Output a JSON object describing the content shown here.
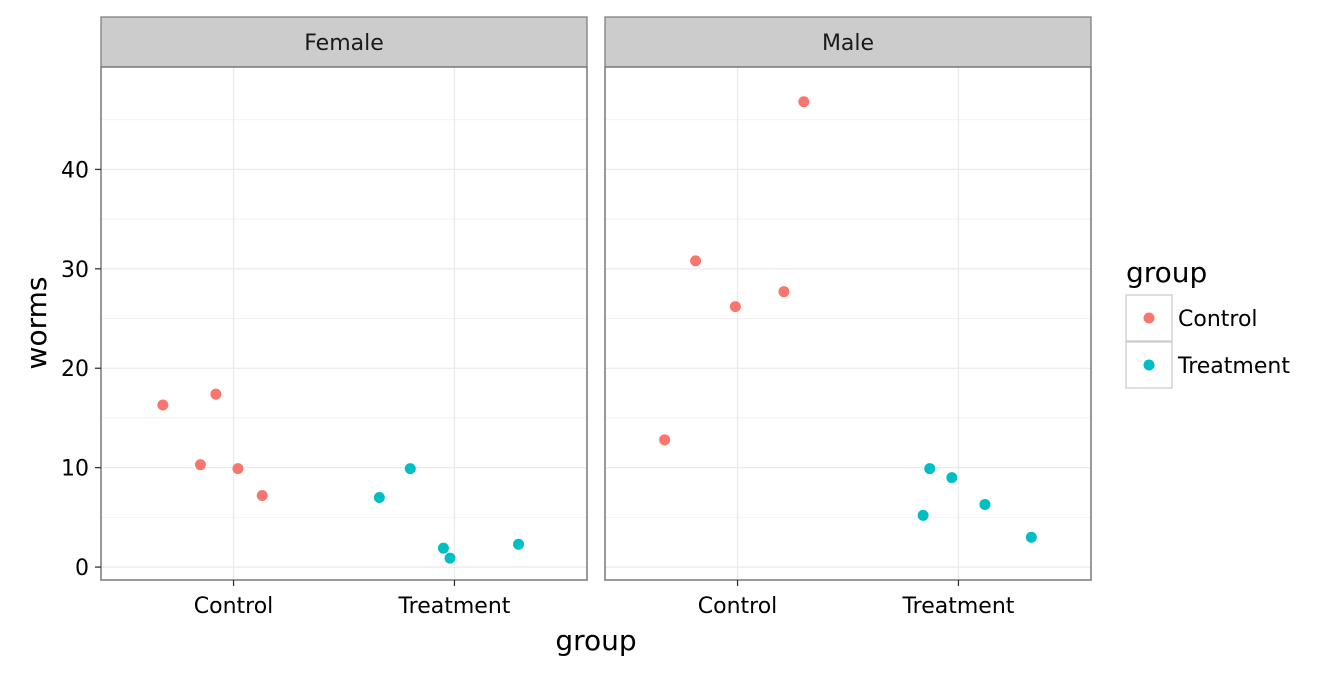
{
  "chart_data": {
    "type": "scatter",
    "facet_labels": [
      "Female",
      "Male"
    ],
    "xlabel": "group",
    "ylabel": "worms",
    "categories": [
      "Control",
      "Treatment"
    ],
    "ylim": [
      -1.3,
      50.3
    ],
    "yticks": [
      0,
      10,
      20,
      30,
      40
    ],
    "grid": true,
    "legend": {
      "title": "group",
      "position": "right",
      "entries": [
        {
          "label": "Control",
          "color": "#F8766D"
        },
        {
          "label": "Treatment",
          "color": "#00BFC4"
        }
      ]
    },
    "panels": [
      {
        "facet": "Female",
        "points": [
          {
            "group": "Control",
            "jitter": -0.32,
            "y": 16.3
          },
          {
            "group": "Control",
            "jitter": -0.08,
            "y": 17.4
          },
          {
            "group": "Control",
            "jitter": -0.15,
            "y": 10.3
          },
          {
            "group": "Control",
            "jitter": 0.02,
            "y": 9.9
          },
          {
            "group": "Control",
            "jitter": 0.13,
            "y": 7.2
          },
          {
            "group": "Treatment",
            "jitter": -0.34,
            "y": 7.0
          },
          {
            "group": "Treatment",
            "jitter": -0.2,
            "y": 9.9
          },
          {
            "group": "Treatment",
            "jitter": -0.05,
            "y": 1.9
          },
          {
            "group": "Treatment",
            "jitter": -0.02,
            "y": 0.9
          },
          {
            "group": "Treatment",
            "jitter": 0.29,
            "y": 2.3
          }
        ]
      },
      {
        "facet": "Male",
        "points": [
          {
            "group": "Control",
            "jitter": -0.33,
            "y": 12.8
          },
          {
            "group": "Control",
            "jitter": -0.19,
            "y": 30.8
          },
          {
            "group": "Control",
            "jitter": -0.01,
            "y": 26.2
          },
          {
            "group": "Control",
            "jitter": 0.21,
            "y": 27.7
          },
          {
            "group": "Control",
            "jitter": 0.3,
            "y": 46.8
          },
          {
            "group": "Treatment",
            "jitter": -0.16,
            "y": 5.2
          },
          {
            "group": "Treatment",
            "jitter": -0.13,
            "y": 9.9
          },
          {
            "group": "Treatment",
            "jitter": -0.03,
            "y": 9.0
          },
          {
            "group": "Treatment",
            "jitter": 0.12,
            "y": 6.3
          },
          {
            "group": "Treatment",
            "jitter": 0.33,
            "y": 3.0
          }
        ]
      }
    ]
  }
}
